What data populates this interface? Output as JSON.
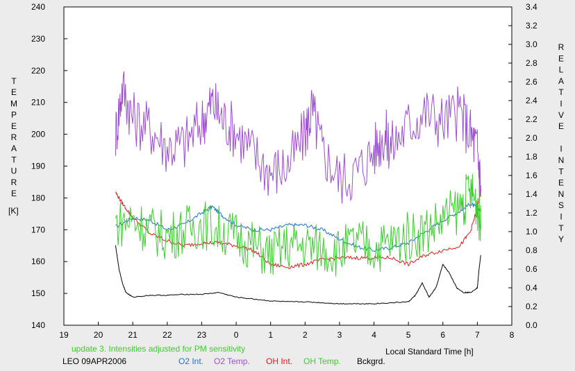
{
  "chart_data": {
    "type": "line",
    "title": "",
    "xlabel": "Local Standard Time [h]",
    "ylabel_left": "TEMPERATURE",
    "ylabel_left_unit": "[K]",
    "ylabel_right": "RELATIVE INTENSITY",
    "x_ticks": [
      "19",
      "20",
      "21",
      "22",
      "23",
      "0",
      "1",
      "2",
      "3",
      "4",
      "5",
      "6",
      "7",
      "8"
    ],
    "xlim": [
      19,
      32
    ],
    "ylim_left": [
      140,
      240
    ],
    "y_ticks_left": [
      "140",
      "150",
      "160",
      "170",
      "180",
      "190",
      "200",
      "210",
      "220",
      "230",
      "240"
    ],
    "ylim_right": [
      0.0,
      3.4
    ],
    "y_ticks_right": [
      "0.0",
      "0.2",
      "0.4",
      "0.6",
      "0.8",
      "1.0",
      "1.2",
      "1.4",
      "1.6",
      "1.8",
      "2.0",
      "2.2",
      "2.4",
      "2.6",
      "2.8",
      "3.0",
      "3.2",
      "3.4"
    ],
    "grid": false,
    "note": "update 3. Intensities adjusted for PM sensitivity",
    "station": "LEO 09APR2006",
    "series": [
      {
        "name": "O2 Int.",
        "axis": "right",
        "color": "#1f6fd6",
        "x": [
          20.5,
          21.0,
          21.5,
          22.0,
          22.5,
          23.0,
          23.3,
          23.6,
          24.0,
          24.5,
          25.0,
          25.5,
          26.0,
          26.5,
          27.0,
          27.5,
          28.0,
          28.5,
          29.0,
          29.5,
          30.0,
          30.5,
          30.8,
          31.0,
          31.1
        ],
        "y": [
          1.05,
          1.15,
          1.12,
          1.02,
          1.08,
          1.2,
          1.27,
          1.17,
          1.07,
          1.02,
          1.02,
          1.07,
          1.07,
          1.02,
          0.92,
          0.84,
          0.8,
          0.83,
          0.88,
          1.0,
          1.12,
          1.22,
          1.3,
          1.25,
          1.22
        ]
      },
      {
        "name": "O2 Temp.",
        "axis": "left",
        "color": "#9b4fd0",
        "x": [
          20.5,
          20.7,
          21.0,
          21.5,
          22.0,
          22.5,
          23.0,
          23.3,
          23.6,
          24.0,
          24.5,
          25.0,
          25.5,
          26.0,
          26.2,
          26.5,
          27.0,
          27.5,
          28.0,
          28.3,
          28.5,
          29.0,
          29.5,
          30.0,
          30.5,
          30.8,
          31.0,
          31.1
        ],
        "y": [
          200,
          215,
          205,
          202,
          196,
          197,
          204,
          210,
          205,
          201,
          194,
          188,
          190,
          200,
          208,
          195,
          186,
          188,
          195,
          200,
          196,
          203,
          207,
          204,
          207,
          200,
          195,
          184
        ]
      },
      {
        "name": "OH Int.",
        "axis": "right",
        "color": "#e01818",
        "x": [
          20.5,
          20.7,
          21.0,
          21.5,
          22.0,
          22.5,
          23.0,
          23.5,
          24.0,
          24.5,
          25.0,
          25.5,
          26.0,
          26.5,
          27.0,
          27.5,
          28.0,
          28.5,
          29.0,
          29.5,
          30.0,
          30.5,
          30.8,
          31.0,
          31.1
        ],
        "y": [
          1.42,
          1.3,
          1.15,
          0.98,
          0.9,
          0.85,
          0.88,
          0.88,
          0.85,
          0.8,
          0.65,
          0.62,
          0.65,
          0.7,
          0.72,
          0.72,
          0.72,
          0.72,
          0.65,
          0.75,
          0.8,
          0.85,
          1.0,
          1.25,
          1.45
        ]
      },
      {
        "name": "OH Temp.",
        "axis": "left",
        "color": "#3ccc2e",
        "x": [
          20.5,
          21.0,
          21.5,
          22.0,
          22.5,
          23.0,
          23.5,
          24.0,
          24.5,
          25.0,
          25.5,
          26.0,
          26.5,
          27.0,
          27.5,
          28.0,
          28.5,
          29.0,
          29.5,
          30.0,
          30.5,
          30.8,
          31.0,
          31.1
        ],
        "y": [
          172,
          173,
          170,
          168,
          170,
          172,
          170,
          168,
          165,
          162,
          165,
          165,
          164,
          163,
          166,
          164,
          166,
          168,
          170,
          173,
          177,
          182,
          178,
          170
        ]
      },
      {
        "name": "Bckgrd.",
        "axis": "right",
        "color": "#000000",
        "x": [
          20.5,
          20.6,
          20.7,
          20.8,
          21.0,
          21.5,
          22.0,
          22.5,
          23.0,
          23.5,
          24.0,
          24.5,
          25.0,
          25.5,
          26.0,
          26.5,
          27.0,
          27.5,
          28.0,
          28.5,
          29.0,
          29.2,
          29.4,
          29.6,
          29.8,
          30.0,
          30.2,
          30.4,
          30.6,
          30.8,
          31.0,
          31.05,
          31.1
        ],
        "y": [
          0.85,
          0.6,
          0.45,
          0.35,
          0.3,
          0.32,
          0.32,
          0.33,
          0.33,
          0.35,
          0.3,
          0.28,
          0.26,
          0.25,
          0.25,
          0.24,
          0.23,
          0.23,
          0.23,
          0.24,
          0.25,
          0.32,
          0.45,
          0.3,
          0.4,
          0.65,
          0.55,
          0.4,
          0.35,
          0.35,
          0.4,
          0.6,
          0.75
        ]
      }
    ]
  }
}
